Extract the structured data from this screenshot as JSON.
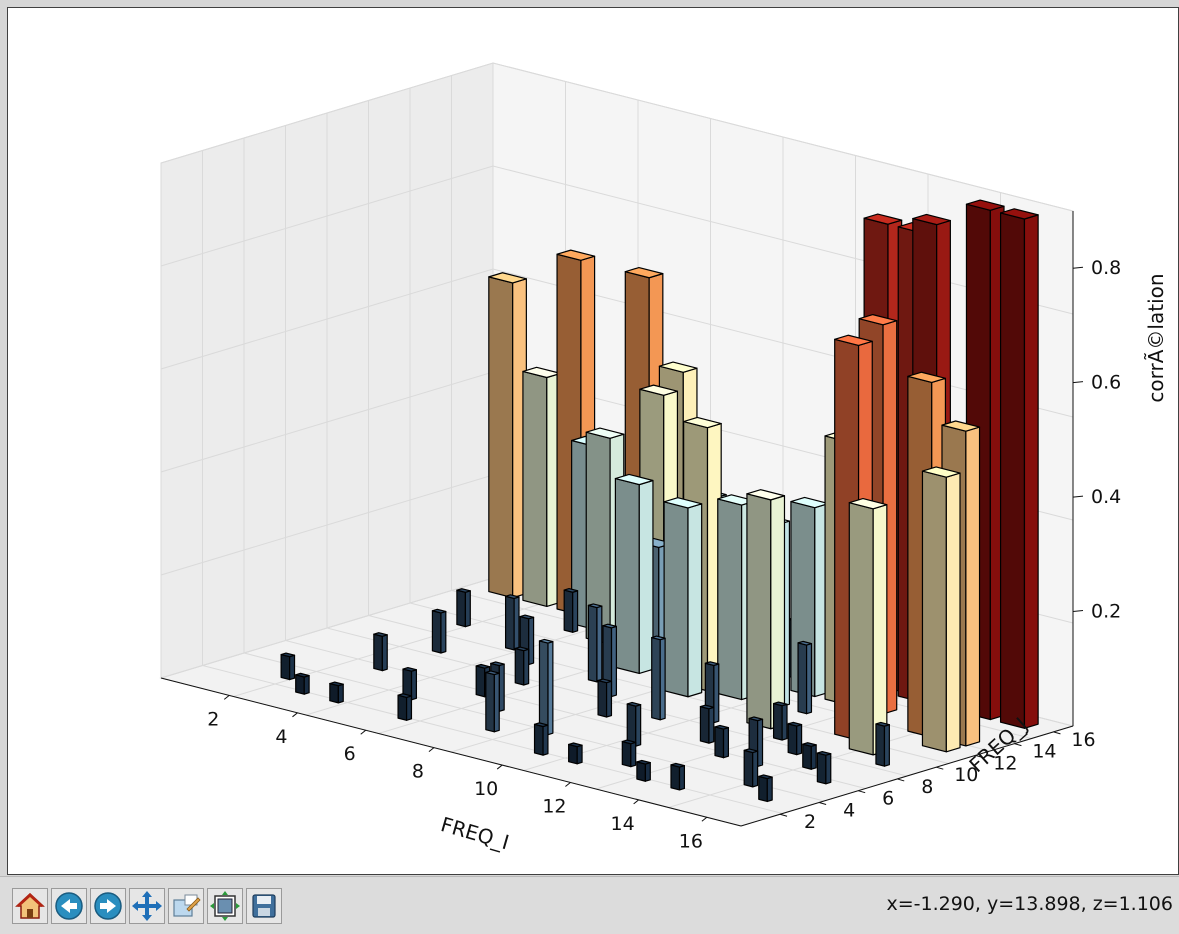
{
  "window": {
    "coords_readout": "x=-1.290, y=13.898, z=1.106"
  },
  "toolbar": {
    "buttons": [
      {
        "name": "home-button",
        "icon": "home-icon",
        "tooltip": "Reset original view"
      },
      {
        "name": "back-button",
        "icon": "arrow-left-icon",
        "tooltip": "Back to previous view"
      },
      {
        "name": "forward-button",
        "icon": "arrow-right-icon",
        "tooltip": "Forward to next view"
      },
      {
        "name": "pan-button",
        "icon": "move-icon",
        "tooltip": "Pan axes"
      },
      {
        "name": "zoom-button",
        "icon": "zoom-rect-icon",
        "tooltip": "Zoom to rectangle"
      },
      {
        "name": "subplots-button",
        "icon": "subplots-icon",
        "tooltip": "Configure subplots"
      },
      {
        "name": "save-button",
        "icon": "floppy-disk-icon",
        "tooltip": "Save the figure"
      }
    ]
  },
  "chart_data": {
    "type": "bar3d",
    "xlabel": "FREQ_I",
    "ylabel": "FREQ_J",
    "zlabel": "corrÃ©lation",
    "x_ticks": [
      "2",
      "4",
      "6",
      "8",
      "10",
      "12",
      "14",
      "16"
    ],
    "y_ticks": [
      "2",
      "4",
      "6",
      "8",
      "10",
      "12",
      "14",
      "16"
    ],
    "z_ticks": [
      "0.2",
      "0.4",
      "0.6",
      "0.8"
    ],
    "xlim": [
      0,
      17
    ],
    "ylim": [
      0,
      17
    ],
    "zlim": [
      0,
      0.9
    ],
    "colormap_stops": [
      "#0a1a2e",
      "#4f7393",
      "#b9dfe9",
      "#fffcc8",
      "#f6a45a",
      "#e0412c",
      "#7f0a0a"
    ],
    "bars": [
      {
        "x": 1,
        "y": 16,
        "z": 0.55
      },
      {
        "x": 2,
        "y": 16,
        "z": 0.4
      },
      {
        "x": 3,
        "y": 16,
        "z": 0.62
      },
      {
        "x": 4,
        "y": 15,
        "z": 0.32
      },
      {
        "x": 5,
        "y": 16,
        "z": 0.62
      },
      {
        "x": 5,
        "y": 14,
        "z": 0.36
      },
      {
        "x": 6,
        "y": 16,
        "z": 0.47
      },
      {
        "x": 6,
        "y": 15,
        "z": 0.44
      },
      {
        "x": 7,
        "y": 13,
        "z": 0.21
      },
      {
        "x": 7,
        "y": 12,
        "z": 0.33
      },
      {
        "x": 9,
        "y": 12,
        "z": 0.46
      },
      {
        "x": 9,
        "y": 11,
        "z": 0.33
      },
      {
        "x": 10,
        "y": 12,
        "z": 0.34
      },
      {
        "x": 11,
        "y": 14,
        "z": 0.33
      },
      {
        "x": 8,
        "y": 14,
        "z": 0.3
      },
      {
        "x": 12,
        "y": 16,
        "z": 0.82
      },
      {
        "x": 13,
        "y": 16,
        "z": 0.82
      },
      {
        "x": 13,
        "y": 14,
        "z": 0.68
      },
      {
        "x": 14,
        "y": 15,
        "z": 0.86
      },
      {
        "x": 15,
        "y": 16,
        "z": 0.89
      },
      {
        "x": 16,
        "y": 16,
        "z": 0.89
      },
      {
        "x": 14,
        "y": 11,
        "z": 0.69
      },
      {
        "x": 15,
        "y": 13,
        "z": 0.62
      },
      {
        "x": 16,
        "y": 12,
        "z": 0.48
      },
      {
        "x": 16,
        "y": 13,
        "z": 0.55
      },
      {
        "x": 15,
        "y": 10,
        "z": 0.43
      },
      {
        "x": 11,
        "y": 12,
        "z": 0.32
      },
      {
        "x": 12,
        "y": 14,
        "z": 0.46
      },
      {
        "x": 12,
        "y": 10,
        "z": 0.4
      }
    ],
    "small_bars": [
      {
        "x": 2,
        "y": 3,
        "z": 0.04
      },
      {
        "x": 3,
        "y": 6,
        "z": 0.06
      },
      {
        "x": 4,
        "y": 2,
        "z": 0.03
      },
      {
        "x": 5,
        "y": 4,
        "z": 0.05
      },
      {
        "x": 6,
        "y": 2,
        "z": 0.04
      },
      {
        "x": 7,
        "y": 5,
        "z": 0.08
      },
      {
        "x": 8,
        "y": 3,
        "z": 0.1
      },
      {
        "x": 9,
        "y": 7,
        "z": 0.06
      },
      {
        "x": 10,
        "y": 2,
        "z": 0.05
      },
      {
        "x": 11,
        "y": 5,
        "z": 0.07
      },
      {
        "x": 12,
        "y": 3,
        "z": 0.04
      },
      {
        "x": 13,
        "y": 6,
        "z": 0.05
      },
      {
        "x": 14,
        "y": 2,
        "z": 0.04
      },
      {
        "x": 15,
        "y": 4,
        "z": 0.06
      },
      {
        "x": 16,
        "y": 6,
        "z": 0.05
      },
      {
        "x": 3,
        "y": 9,
        "z": 0.07
      },
      {
        "x": 4,
        "y": 11,
        "z": 0.09
      },
      {
        "x": 6,
        "y": 8,
        "z": 0.06
      },
      {
        "x": 8,
        "y": 9,
        "z": 0.12
      },
      {
        "x": 10,
        "y": 8,
        "z": 0.14
      },
      {
        "x": 12,
        "y": 7,
        "z": 0.06
      },
      {
        "x": 14,
        "y": 8,
        "z": 0.05
      },
      {
        "x": 16,
        "y": 9,
        "z": 0.07
      },
      {
        "x": 9,
        "y": 4,
        "z": 0.16
      },
      {
        "x": 11,
        "y": 9,
        "z": 0.1
      },
      {
        "x": 13,
        "y": 9,
        "z": 0.06
      },
      {
        "x": 15,
        "y": 7,
        "z": 0.04
      },
      {
        "x": 7,
        "y": 10,
        "z": 0.13
      },
      {
        "x": 5,
        "y": 10,
        "z": 0.08
      },
      {
        "x": 2,
        "y": 12,
        "z": 0.06
      },
      {
        "x": 10,
        "y": 15,
        "z": 0.1
      },
      {
        "x": 8,
        "y": 16,
        "z": 0.08
      },
      {
        "x": 4,
        "y": 14,
        "z": 0.07
      },
      {
        "x": 14,
        "y": 6,
        "z": 0.08
      },
      {
        "x": 16,
        "y": 3,
        "z": 0.04
      },
      {
        "x": 12,
        "y": 12,
        "z": 0.12
      },
      {
        "x": 6,
        "y": 6,
        "z": 0.05
      },
      {
        "x": 11,
        "y": 2,
        "z": 0.03
      },
      {
        "x": 13,
        "y": 2,
        "z": 0.03
      },
      {
        "x": 3,
        "y": 2,
        "z": 0.03
      }
    ]
  }
}
